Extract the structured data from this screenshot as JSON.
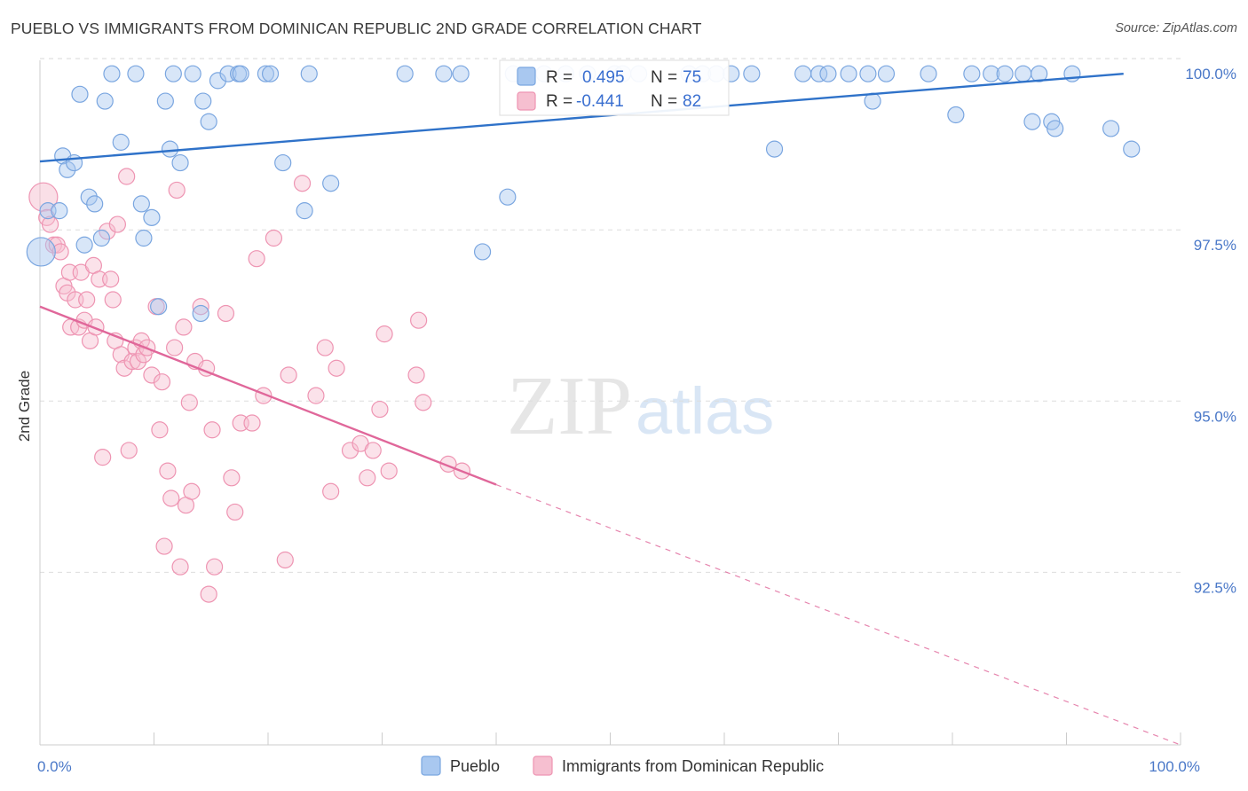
{
  "title": "PUEBLO VS IMMIGRANTS FROM DOMINICAN REPUBLIC 2ND GRADE CORRELATION CHART",
  "source": "Source: ZipAtlas.com",
  "colors": {
    "pueblo_fill": "#a9c8f0",
    "pueblo_stroke": "#7aa6e0",
    "pueblo_line": "#2f72c9",
    "dom_fill": "#f6bfd0",
    "dom_stroke": "#ee94b2",
    "dom_line": "#e0679a",
    "grid": "#dddddd",
    "tick_label": "#4a78c8"
  },
  "legend_top": {
    "rows": [
      {
        "r_label": "R =",
        "r_value": "0.495",
        "n_label": "N =",
        "n_value": "75"
      },
      {
        "r_label": "R =",
        "r_value": "-0.441",
        "n_label": "N =",
        "n_value": "82"
      }
    ]
  },
  "watermark": {
    "zip": "ZIP",
    "atlas": "atlas"
  },
  "chart_data": {
    "type": "scatter",
    "title": "PUEBLO VS IMMIGRANTS FROM DOMINICAN REPUBLIC 2ND GRADE CORRELATION CHART",
    "xlabel": "",
    "ylabel": "2nd Grade",
    "xlim": [
      0,
      100
    ],
    "ylim": [
      90.2,
      100.3
    ],
    "y_ticks": [
      {
        "value": 100.0,
        "label": "100.0%"
      },
      {
        "value": 97.5,
        "label": "97.5%"
      },
      {
        "value": 95.0,
        "label": "95.0%"
      },
      {
        "value": 92.5,
        "label": "92.5%"
      }
    ],
    "x_ticks": [
      {
        "value": 0,
        "label": "0.0%"
      },
      {
        "value": 100,
        "label": "100.0%"
      }
    ],
    "grid": true,
    "legend_position": "bottom",
    "series": [
      {
        "name": "Pueblo",
        "r": 0.495,
        "n": 75,
        "trend": {
          "x0": 0,
          "y0": 98.72,
          "x1": 95,
          "y1": 100.0,
          "dashed_to": null
        },
        "points": [
          [
            0.1,
            97.4
          ],
          [
            0.7,
            98.0
          ],
          [
            1.7,
            98.0
          ],
          [
            2.0,
            98.8
          ],
          [
            2.4,
            98.6
          ],
          [
            3.0,
            98.7
          ],
          [
            3.5,
            99.7
          ],
          [
            3.9,
            97.5
          ],
          [
            4.3,
            98.2
          ],
          [
            4.8,
            98.1
          ],
          [
            5.4,
            97.6
          ],
          [
            5.7,
            99.6
          ],
          [
            6.3,
            100.0
          ],
          [
            7.1,
            99.0
          ],
          [
            8.4,
            100.0
          ],
          [
            8.9,
            98.1
          ],
          [
            9.1,
            97.6
          ],
          [
            9.8,
            97.9
          ],
          [
            10.4,
            96.6
          ],
          [
            11.0,
            99.6
          ],
          [
            11.4,
            98.9
          ],
          [
            11.7,
            100.0
          ],
          [
            12.3,
            98.7
          ],
          [
            13.4,
            100.0
          ],
          [
            14.3,
            99.6
          ],
          [
            14.8,
            99.3
          ],
          [
            14.1,
            96.5
          ],
          [
            15.6,
            99.9
          ],
          [
            16.5,
            100.0
          ],
          [
            17.4,
            100.0
          ],
          [
            17.6,
            100.0
          ],
          [
            19.8,
            100.0
          ],
          [
            20.2,
            100.0
          ],
          [
            21.3,
            98.7
          ],
          [
            23.2,
            98.0
          ],
          [
            23.6,
            100.0
          ],
          [
            25.5,
            98.4
          ],
          [
            32.0,
            100.0
          ],
          [
            35.4,
            100.0
          ],
          [
            36.9,
            100.0
          ],
          [
            38.8,
            97.4
          ],
          [
            41.0,
            98.2
          ],
          [
            41.5,
            100.0
          ],
          [
            44.2,
            100.0
          ],
          [
            46.1,
            100.0
          ],
          [
            48.0,
            100.0
          ],
          [
            50.4,
            100.0
          ],
          [
            51.1,
            100.0
          ],
          [
            52.5,
            100.0
          ],
          [
            56.9,
            100.0
          ],
          [
            58.1,
            100.0
          ],
          [
            59.3,
            100.0
          ],
          [
            60.6,
            100.0
          ],
          [
            62.4,
            100.0
          ],
          [
            64.4,
            98.9
          ],
          [
            66.9,
            100.0
          ],
          [
            68.3,
            100.0
          ],
          [
            69.1,
            100.0
          ],
          [
            70.9,
            100.0
          ],
          [
            72.6,
            100.0
          ],
          [
            73.0,
            99.6
          ],
          [
            74.2,
            100.0
          ],
          [
            77.9,
            100.0
          ],
          [
            80.3,
            99.4
          ],
          [
            81.7,
            100.0
          ],
          [
            83.4,
            100.0
          ],
          [
            84.6,
            100.0
          ],
          [
            86.2,
            100.0
          ],
          [
            87.0,
            99.3
          ],
          [
            87.6,
            100.0
          ],
          [
            88.7,
            99.3
          ],
          [
            89.0,
            99.2
          ],
          [
            90.5,
            100.0
          ],
          [
            93.9,
            99.2
          ],
          [
            95.7,
            98.9
          ]
        ]
      },
      {
        "name": "Immigrants from Dominican Republic",
        "r": -0.441,
        "n": 82,
        "trend": {
          "x0": 0,
          "y0": 96.6,
          "x1": 40,
          "y1": 94.0,
          "dashed_to": {
            "x": 100,
            "y": 90.2
          }
        },
        "points": [
          [
            0.3,
            98.2
          ],
          [
            0.6,
            97.9
          ],
          [
            0.9,
            97.8
          ],
          [
            1.2,
            97.5
          ],
          [
            1.5,
            97.5
          ],
          [
            1.8,
            97.4
          ],
          [
            2.1,
            96.9
          ],
          [
            2.4,
            96.8
          ],
          [
            2.7,
            96.3
          ],
          [
            2.6,
            97.1
          ],
          [
            3.1,
            96.7
          ],
          [
            3.4,
            96.3
          ],
          [
            3.6,
            97.1
          ],
          [
            3.9,
            96.4
          ],
          [
            4.1,
            96.7
          ],
          [
            4.4,
            96.1
          ],
          [
            4.7,
            97.2
          ],
          [
            4.9,
            96.3
          ],
          [
            5.2,
            97.0
          ],
          [
            5.5,
            94.4
          ],
          [
            5.9,
            97.7
          ],
          [
            6.2,
            97.0
          ],
          [
            6.4,
            96.7
          ],
          [
            6.6,
            96.1
          ],
          [
            6.8,
            97.8
          ],
          [
            7.1,
            95.9
          ],
          [
            7.4,
            95.7
          ],
          [
            7.6,
            98.5
          ],
          [
            7.8,
            94.5
          ],
          [
            8.1,
            95.8
          ],
          [
            8.4,
            96.0
          ],
          [
            8.6,
            95.8
          ],
          [
            8.9,
            96.1
          ],
          [
            9.1,
            95.9
          ],
          [
            9.4,
            96.0
          ],
          [
            9.8,
            95.6
          ],
          [
            10.2,
            96.6
          ],
          [
            10.5,
            94.8
          ],
          [
            10.7,
            95.5
          ],
          [
            10.9,
            93.1
          ],
          [
            11.2,
            94.2
          ],
          [
            11.5,
            93.8
          ],
          [
            11.8,
            96.0
          ],
          [
            12.0,
            98.3
          ],
          [
            12.3,
            92.8
          ],
          [
            12.6,
            96.3
          ],
          [
            12.8,
            93.7
          ],
          [
            13.1,
            95.2
          ],
          [
            13.3,
            93.9
          ],
          [
            13.6,
            95.8
          ],
          [
            14.1,
            96.6
          ],
          [
            14.6,
            95.7
          ],
          [
            14.8,
            92.4
          ],
          [
            15.1,
            94.8
          ],
          [
            15.3,
            92.8
          ],
          [
            16.3,
            96.5
          ],
          [
            16.8,
            94.1
          ],
          [
            17.1,
            93.6
          ],
          [
            17.6,
            94.9
          ],
          [
            18.6,
            94.9
          ],
          [
            19.0,
            97.3
          ],
          [
            19.6,
            95.3
          ],
          [
            20.5,
            97.6
          ],
          [
            21.5,
            92.9
          ],
          [
            21.8,
            95.6
          ],
          [
            23.0,
            98.4
          ],
          [
            24.2,
            95.3
          ],
          [
            25.0,
            96.0
          ],
          [
            25.5,
            93.9
          ],
          [
            26.0,
            95.7
          ],
          [
            27.2,
            94.5
          ],
          [
            28.1,
            94.6
          ],
          [
            28.7,
            94.1
          ],
          [
            29.2,
            94.5
          ],
          [
            29.8,
            95.1
          ],
          [
            30.2,
            96.2
          ],
          [
            30.6,
            94.2
          ],
          [
            33.0,
            95.6
          ],
          [
            33.6,
            95.2
          ],
          [
            37.0,
            94.2
          ],
          [
            35.8,
            94.3
          ],
          [
            33.2,
            96.4
          ]
        ]
      }
    ]
  }
}
